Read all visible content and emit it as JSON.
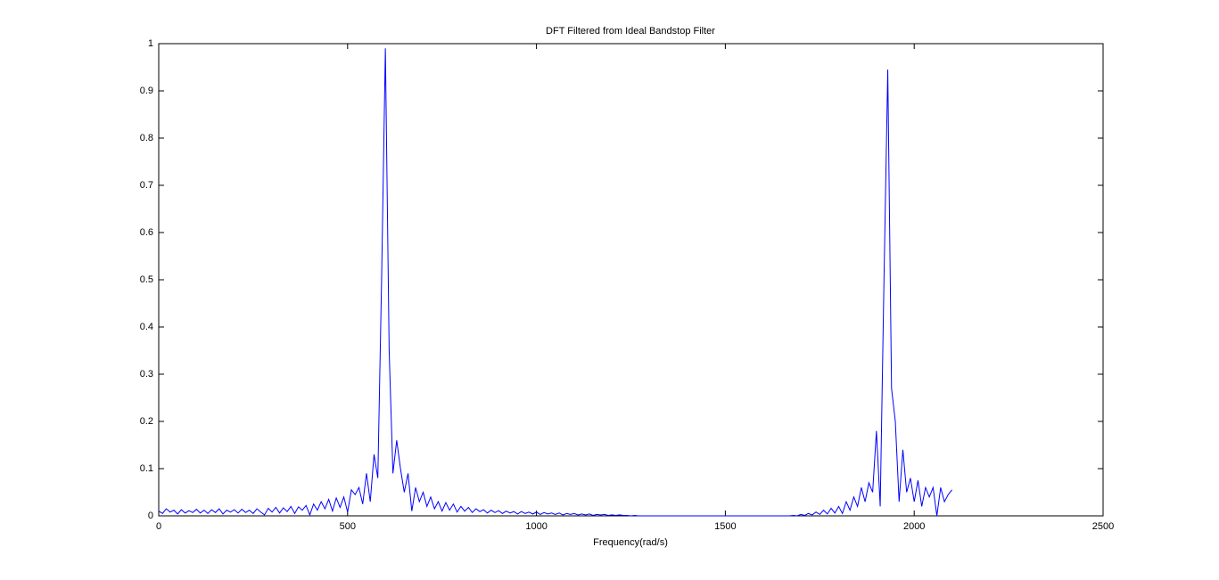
{
  "chart_data": {
    "type": "line",
    "title": "DFT Filtered from Ideal Bandstop Filter",
    "x_label": "Frequency(rad/s)",
    "xlim": [
      0,
      2500
    ],
    "xticks": [
      0,
      500,
      1000,
      1500,
      2000,
      2500
    ],
    "ylim": [
      0,
      1
    ],
    "yticks": [
      0,
      0.1,
      0.2,
      0.3,
      0.4,
      0.5,
      0.6,
      0.7,
      0.8,
      0.9,
      1
    ],
    "grid": false,
    "series": [
      {
        "color": "#0000ff",
        "x": [
          0,
          10,
          20,
          30,
          40,
          50,
          60,
          70,
          80,
          90,
          100,
          110,
          120,
          130,
          140,
          150,
          160,
          170,
          180,
          190,
          200,
          210,
          220,
          230,
          240,
          250,
          260,
          270,
          280,
          290,
          300,
          310,
          320,
          330,
          340,
          350,
          360,
          370,
          380,
          390,
          400,
          410,
          420,
          430,
          440,
          450,
          460,
          470,
          480,
          490,
          500,
          510,
          520,
          530,
          540,
          550,
          560,
          570,
          580,
          590,
          600,
          610,
          620,
          630,
          640,
          650,
          660,
          670,
          680,
          690,
          700,
          710,
          720,
          730,
          740,
          750,
          760,
          770,
          780,
          790,
          800,
          810,
          820,
          830,
          840,
          850,
          860,
          870,
          880,
          890,
          900,
          910,
          920,
          930,
          940,
          950,
          960,
          970,
          980,
          990,
          1000,
          1010,
          1020,
          1030,
          1040,
          1050,
          1060,
          1070,
          1080,
          1090,
          1100,
          1110,
          1120,
          1130,
          1140,
          1150,
          1160,
          1170,
          1180,
          1190,
          1200,
          1210,
          1220,
          1230,
          1240,
          1250,
          1260,
          1270,
          1280,
          1290,
          1300,
          1310,
          1320,
          1330,
          1340,
          1350,
          1360,
          1370,
          1380,
          1390,
          1400,
          1410,
          1420,
          1430,
          1440,
          1450,
          1460,
          1470,
          1480,
          1490,
          1500,
          1510,
          1520,
          1530,
          1540,
          1550,
          1560,
          1570,
          1580,
          1590,
          1600,
          1610,
          1620,
          1630,
          1640,
          1650,
          1660,
          1670,
          1680,
          1690,
          1700,
          1710,
          1720,
          1730,
          1740,
          1750,
          1760,
          1770,
          1780,
          1790,
          1800,
          1810,
          1820,
          1830,
          1840,
          1850,
          1860,
          1870,
          1880,
          1890,
          1900,
          1910,
          1920,
          1930,
          1940,
          1950,
          1960,
          1970,
          1980,
          1990,
          2000,
          2010,
          2020,
          2030,
          2040,
          2050,
          2060,
          2070,
          2080,
          2090,
          2100
        ],
        "values": [
          0.01,
          0.005,
          0.015,
          0.008,
          0.012,
          0.004,
          0.013,
          0.006,
          0.011,
          0.007,
          0.014,
          0.006,
          0.012,
          0.005,
          0.013,
          0.007,
          0.015,
          0.004,
          0.012,
          0.008,
          0.013,
          0.006,
          0.014,
          0.007,
          0.012,
          0.005,
          0.015,
          0.008,
          0.002,
          0.016,
          0.008,
          0.018,
          0.006,
          0.017,
          0.009,
          0.02,
          0.005,
          0.019,
          0.012,
          0.022,
          0.002,
          0.025,
          0.012,
          0.03,
          0.015,
          0.035,
          0.01,
          0.038,
          0.018,
          0.04,
          0.008,
          0.055,
          0.045,
          0.06,
          0.025,
          0.09,
          0.03,
          0.13,
          0.08,
          0.5,
          0.99,
          0.35,
          0.09,
          0.16,
          0.1,
          0.05,
          0.09,
          0.01,
          0.06,
          0.03,
          0.05,
          0.02,
          0.04,
          0.015,
          0.03,
          0.01,
          0.028,
          0.012,
          0.025,
          0.008,
          0.02,
          0.01,
          0.018,
          0.007,
          0.015,
          0.009,
          0.013,
          0.006,
          0.012,
          0.007,
          0.011,
          0.005,
          0.01,
          0.006,
          0.009,
          0.004,
          0.009,
          0.005,
          0.008,
          0.004,
          0.008,
          0.003,
          0.007,
          0.004,
          0.006,
          0.003,
          0.006,
          0.002,
          0.005,
          0.003,
          0.005,
          0.002,
          0.004,
          0.002,
          0.004,
          0.001,
          0.003,
          0.002,
          0.003,
          0.001,
          0.002,
          0.001,
          0.002,
          0.001,
          0.001,
          0,
          0.001,
          0,
          0,
          0,
          0,
          0,
          0,
          0,
          0,
          0,
          0,
          0,
          0,
          0,
          0,
          0,
          0,
          0,
          0,
          0,
          0,
          0,
          0,
          0,
          0,
          0,
          0,
          0,
          0,
          0,
          0,
          0,
          0,
          0,
          0,
          0,
          0,
          0,
          0,
          0,
          0,
          0,
          0.001,
          0,
          0.003,
          0.001,
          0.005,
          0.002,
          0.008,
          0.003,
          0.012,
          0.004,
          0.016,
          0.006,
          0.02,
          0.005,
          0.03,
          0.012,
          0.04,
          0.02,
          0.06,
          0.03,
          0.07,
          0.05,
          0.18,
          0.02,
          0.5,
          0.945,
          0.27,
          0.2,
          0.03,
          0.14,
          0.05,
          0.08,
          0.03,
          0.075,
          0.02,
          0.06,
          0.04,
          0.06,
          0,
          0.06,
          0.03,
          0.045,
          0.055
        ]
      }
    ]
  }
}
